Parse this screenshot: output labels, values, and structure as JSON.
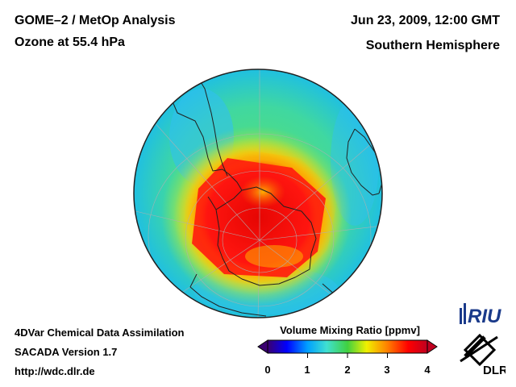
{
  "header": {
    "title_line1": "GOME–2 / MetOp Analysis",
    "title_line2": "Ozone at 55.4 hPa",
    "date_line": "Jun 23, 2009, 12:00 GMT",
    "hemisphere": "Southern Hemisphere"
  },
  "footer": {
    "line1": "4DVar Chemical Data Assimilation",
    "line2": "SACADA Version 1.7",
    "line3": "http://wdc.dlr.de"
  },
  "colorbar": {
    "title": "Volume Mixing Ratio [ppmv]",
    "ticks": [
      "0",
      "1",
      "2",
      "3",
      "4"
    ],
    "range": [
      0,
      4
    ],
    "colors": [
      "#3a0070",
      "#0000ff",
      "#00a0ff",
      "#40e0d0",
      "#40d040",
      "#f0f000",
      "#ff8000",
      "#ff0000",
      "#c00020"
    ]
  },
  "logos": {
    "riu_text": "RIU",
    "dlr_text": "DLR"
  },
  "map": {
    "projection": "orthographic",
    "center": "south-pole",
    "quantity": "ozone",
    "unit": "ppmv"
  }
}
